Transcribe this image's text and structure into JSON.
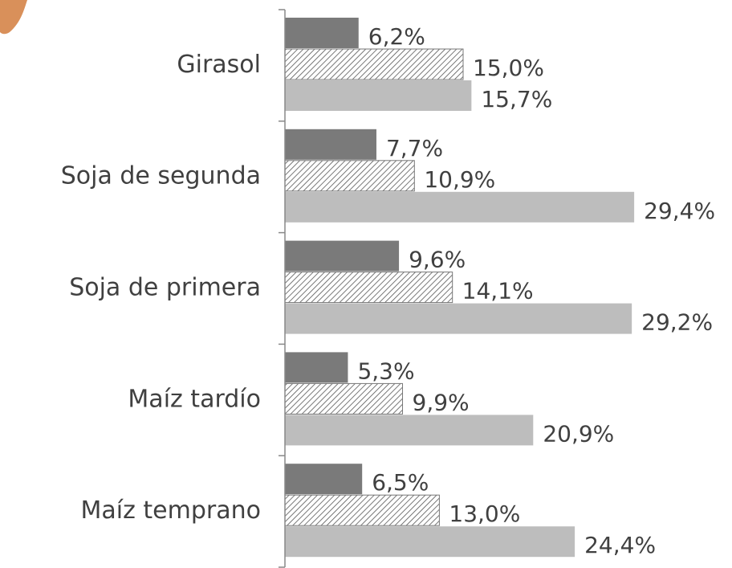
{
  "chart_data": {
    "type": "bar",
    "orientation": "horizontal",
    "categories": [
      "Girasol",
      "Soja de segunda",
      "Soja de primera",
      "Maíz tardío",
      "Maíz temprano"
    ],
    "xlim": [
      0,
      30
    ],
    "series": [
      {
        "color": "#7a7a7a",
        "values": [
          6.2,
          7.7,
          9.6,
          5.3,
          6.5
        ],
        "value_labels": [
          "6,2%",
          "7,7%",
          "9,6%",
          "5,3%",
          "6,5%"
        ]
      },
      {
        "color": "hatch",
        "values": [
          15.0,
          10.9,
          14.1,
          9.9,
          13.0
        ],
        "value_labels": [
          "15,0%",
          "10,9%",
          "14,1%",
          "9,9%",
          "13,0%"
        ]
      },
      {
        "color": "#bdbdbd",
        "values": [
          15.7,
          29.4,
          29.2,
          20.9,
          24.4
        ],
        "value_labels": [
          "15,7%",
          "29,4%",
          "29,2%",
          "20,9%",
          "24,4%"
        ]
      }
    ]
  }
}
